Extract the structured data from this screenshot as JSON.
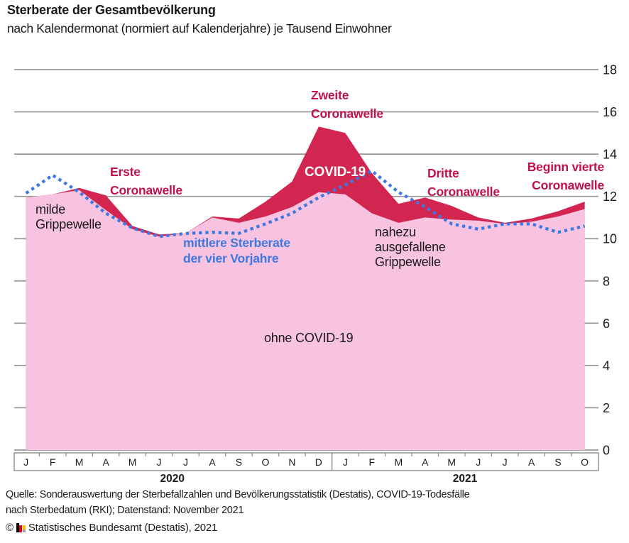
{
  "header": {
    "title": "Sterberate der Gesamtbevölkerung",
    "subtitle": "nach Kalendermonat (normiert auf Kalenderjahre) je Tausend Einwohner"
  },
  "colors": {
    "covid_area_red": "#d22550",
    "without_covid_area_pink": "#f8c3e0",
    "average_line_blue": "#3d79e1",
    "annotation_red": "#c0104d",
    "grid_gray": "#979797",
    "axis_box_gray": "#8a8a8a"
  },
  "chart_data": {
    "type": "area",
    "ylim": [
      0,
      18
    ],
    "yticks": [
      0,
      2,
      4,
      6,
      8,
      10,
      12,
      14,
      16,
      18
    ],
    "grid": "on",
    "x_years": [
      {
        "label": "2020",
        "months": [
          "J",
          "F",
          "M",
          "A",
          "M",
          "J",
          "J",
          "A",
          "S",
          "O",
          "N",
          "D"
        ]
      },
      {
        "label": "2021",
        "months": [
          "J",
          "F",
          "M",
          "A",
          "M",
          "J",
          "J",
          "A",
          "S",
          "O"
        ]
      }
    ],
    "series": [
      {
        "key": "total_incl_covid",
        "label": "COVID-19",
        "style": "area-red",
        "values": [
          11.95,
          12.1,
          12.4,
          12.05,
          10.6,
          10.2,
          10.25,
          11.05,
          10.95,
          11.75,
          12.7,
          15.3,
          15.0,
          13.1,
          11.65,
          11.95,
          11.55,
          11.0,
          10.75,
          10.95,
          11.3,
          11.75
        ]
      },
      {
        "key": "ohne_covid",
        "label": "ohne COVID-19",
        "style": "area-pink",
        "values": [
          11.95,
          12.1,
          12.3,
          11.35,
          10.45,
          10.1,
          10.25,
          11.0,
          10.75,
          11.05,
          11.5,
          12.2,
          12.1,
          11.2,
          10.75,
          11.0,
          10.9,
          10.85,
          10.7,
          10.8,
          11.05,
          11.4
        ]
      },
      {
        "key": "vorjahres_mittel",
        "label": "mittlere Sterberate der vier Vorjahre",
        "style": "dotted-line",
        "values": [
          12.15,
          13.0,
          12.2,
          11.2,
          10.5,
          10.1,
          10.25,
          10.3,
          10.25,
          10.7,
          11.2,
          11.95,
          12.55,
          13.2,
          12.2,
          11.5,
          10.7,
          10.45,
          10.7,
          10.7,
          10.3,
          10.6
        ]
      }
    ]
  },
  "annotations": {
    "milde_grippewelle": "milde\nGrippewelle",
    "erste_welle": "Erste\nCoronawelle",
    "zweite_welle": "Zweite\nCoronawelle",
    "covid_label": "COVID-19",
    "dritte_welle": "Dritte\nCoronawelle",
    "vierte_welle": "Beginn vierte\nCoronawelle",
    "mittlere_sterberate": "mittlere Sterberate\nder vier Vorjahre",
    "nahezu_grippewelle": "nahezu\nausgefallene\nGrippewelle",
    "ohne_covid": "ohne COVID-19"
  },
  "footer": {
    "source": "Quelle: Sonderauswertung der Sterbefallzahlen und Bevölkerungsstatistik (Destatis), COVID-19-Todesfälle\nnach Sterbedatum (RKI); Datenstand: November 2021",
    "copyright_symbol": "©",
    "copyright_text": "Statistisches Bundesamt (Destatis), 2021"
  }
}
